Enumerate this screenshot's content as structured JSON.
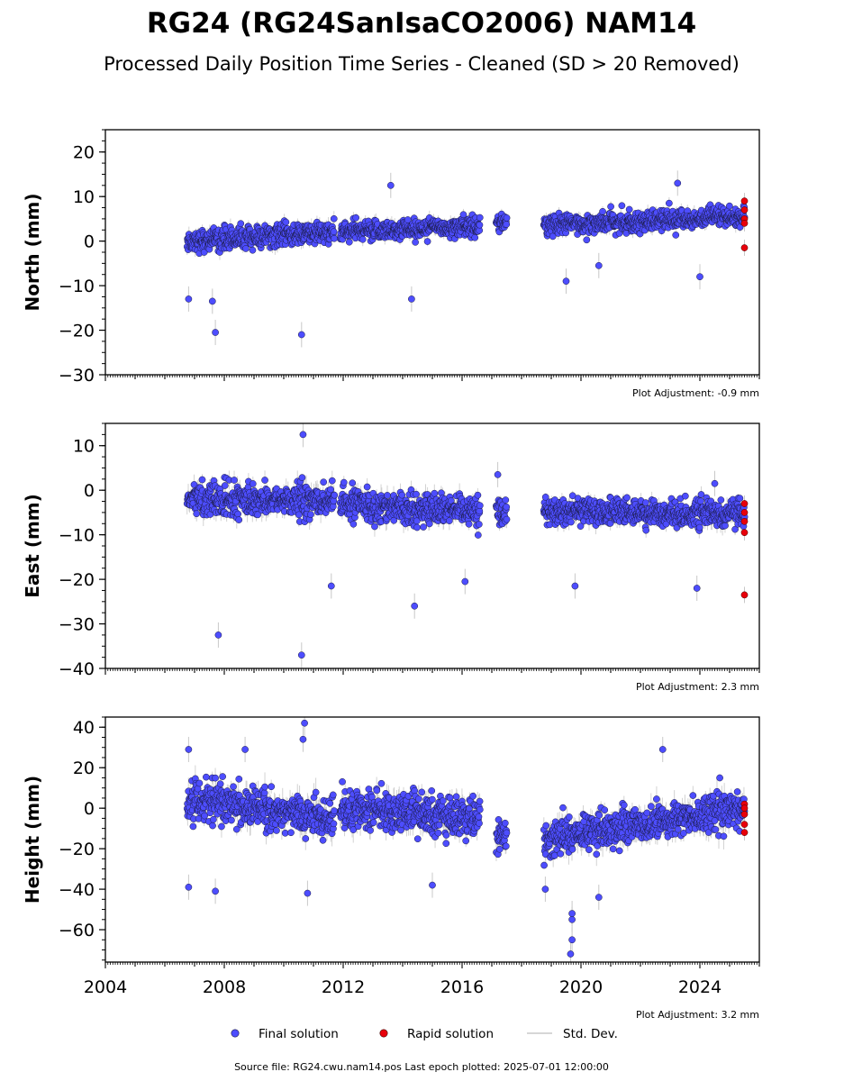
{
  "title": "RG24 (RG24SanIsaCO2006) NAM14",
  "subtitle": "Processed Daily Position Time Series - Cleaned (SD > 20 Removed)",
  "footer": "Source file: RG24.cwu.nam14.pos  Last epoch plotted: 2025-07-01 12:00:00",
  "legend": {
    "final": "Final solution",
    "rapid": "Rapid solution",
    "sd": "Std. Dev."
  },
  "colors": {
    "final": "#4d4dff",
    "rapid": "#e8000b",
    "sd": "#c8c8c8",
    "edge": "#1a1a40"
  },
  "chart_data": [
    {
      "type": "scatter",
      "ylabel": "North (mm)",
      "xlim": [
        2004,
        2026
      ],
      "ylim": [
        -30,
        25
      ],
      "yticks": [
        20,
        10,
        0,
        -10,
        -20,
        -30
      ],
      "ytick_labels": [
        "20",
        "10",
        "0",
        "−10",
        "−20",
        "−30"
      ],
      "adjustment": "Plot Adjustment: -0.9 mm",
      "segments": [
        {
          "x": [
            2006.75,
            2011.7
          ],
          "trend": [
            0.0,
            2.0
          ],
          "noise": 2.2
        },
        {
          "x": [
            2011.9,
            2016.6
          ],
          "trend": [
            2.0,
            3.5
          ],
          "noise": 2.0
        },
        {
          "x": [
            2017.15,
            2017.5
          ],
          "trend": [
            4.0,
            4.5
          ],
          "noise": 1.5
        },
        {
          "x": [
            2018.75,
            2025.5
          ],
          "trend": [
            3.5,
            5.5
          ],
          "noise": 2.0
        }
      ],
      "outliers": [
        [
          2006.8,
          -13
        ],
        [
          2007.7,
          -20.5
        ],
        [
          2007.6,
          -13.5
        ],
        [
          2010.6,
          -21
        ],
        [
          2013.6,
          12.5
        ],
        [
          2014.3,
          -13
        ],
        [
          2023.25,
          13
        ],
        [
          2024.0,
          -8
        ],
        [
          2020.6,
          -5.5
        ],
        [
          2019.5,
          -9
        ]
      ],
      "rapid": [
        [
          2025.5,
          9
        ],
        [
          2025.5,
          7
        ],
        [
          2025.5,
          5
        ],
        [
          2025.5,
          4
        ],
        [
          2025.5,
          -1.5
        ]
      ]
    },
    {
      "type": "scatter",
      "ylabel": "East (mm)",
      "xlim": [
        2004,
        2026
      ],
      "ylim": [
        -40,
        15
      ],
      "yticks": [
        10,
        0,
        -10,
        -20,
        -30,
        -40
      ],
      "ytick_labels": [
        "10",
        "0",
        "−10",
        "−20",
        "−30",
        "−40"
      ],
      "adjustment": "Plot Adjustment: 2.3 mm",
      "segments": [
        {
          "x": [
            2006.75,
            2011.7
          ],
          "trend": [
            -2.0,
            -2.5
          ],
          "noise": 3.2
        },
        {
          "x": [
            2011.9,
            2016.6
          ],
          "trend": [
            -3.0,
            -5.0
          ],
          "noise": 3.0
        },
        {
          "x": [
            2017.15,
            2017.5
          ],
          "trend": [
            -5.0,
            -6.0
          ],
          "noise": 3.0
        },
        {
          "x": [
            2018.75,
            2025.5
          ],
          "trend": [
            -4.5,
            -5.5
          ],
          "noise": 2.6
        }
      ],
      "outliers": [
        [
          2007.8,
          -32.5
        ],
        [
          2010.6,
          -37
        ],
        [
          2010.65,
          12.5
        ],
        [
          2014.4,
          -26
        ],
        [
          2011.6,
          -21.5
        ],
        [
          2017.2,
          3.5
        ],
        [
          2024.5,
          1.5
        ],
        [
          2023.9,
          -22
        ],
        [
          2016.1,
          -20.5
        ],
        [
          2019.8,
          -21.5
        ]
      ],
      "rapid": [
        [
          2025.5,
          -3
        ],
        [
          2025.5,
          -5
        ],
        [
          2025.5,
          -7
        ],
        [
          2025.5,
          -9.5
        ],
        [
          2025.5,
          -23.5
        ]
      ]
    },
    {
      "type": "scatter",
      "ylabel": "Height (mm)",
      "xlim": [
        2004,
        2026
      ],
      "ylim": [
        -76,
        45
      ],
      "yticks": [
        40,
        20,
        0,
        -20,
        -40,
        -60
      ],
      "ytick_labels": [
        "40",
        "20",
        "0",
        "−20",
        "−40",
        "−60"
      ],
      "xticks": [
        2004,
        2008,
        2012,
        2016,
        2020,
        2024
      ],
      "xtick_labels": [
        "2004",
        "2008",
        "2012",
        "2016",
        "2020",
        "2024"
      ],
      "adjustment": "Plot Adjustment: 3.2 mm",
      "segments": [
        {
          "x": [
            2006.75,
            2011.7
          ],
          "trend": [
            5.0,
            -5.0
          ],
          "noise": 8.5
        },
        {
          "x": [
            2011.9,
            2016.6
          ],
          "trend": [
            0.0,
            -5.0
          ],
          "noise": 8.5
        },
        {
          "x": [
            2017.15,
            2017.5
          ],
          "trend": [
            -15.0,
            -15.0
          ],
          "noise": 7.0
        },
        {
          "x": [
            2018.75,
            2025.5
          ],
          "trend": [
            -15.0,
            0.0
          ],
          "noise": 8.0
        }
      ],
      "outliers": [
        [
          2010.7,
          42
        ],
        [
          2010.65,
          34
        ],
        [
          2006.8,
          29
        ],
        [
          2008.7,
          29
        ],
        [
          2022.75,
          29
        ],
        [
          2006.8,
          -39
        ],
        [
          2007.7,
          -41
        ],
        [
          2010.8,
          -42
        ],
        [
          2019.7,
          -55
        ],
        [
          2019.7,
          -65
        ],
        [
          2019.65,
          -72
        ],
        [
          2019.7,
          -52
        ],
        [
          2020.6,
          -44
        ],
        [
          2015.0,
          -38
        ],
        [
          2018.8,
          -40
        ]
      ],
      "rapid": [
        [
          2025.5,
          2
        ],
        [
          2025.5,
          0
        ],
        [
          2025.5,
          -3
        ],
        [
          2025.5,
          -8
        ],
        [
          2025.5,
          -12
        ]
      ]
    }
  ]
}
